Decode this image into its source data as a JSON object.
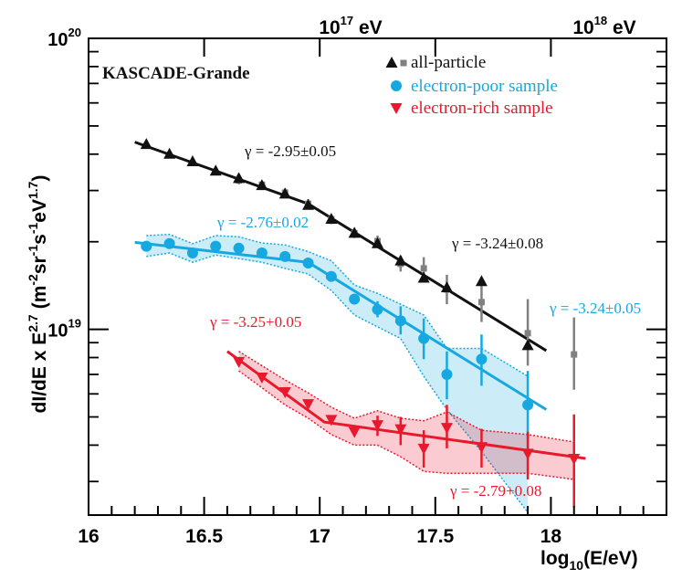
{
  "chart_data": {
    "type": "scatter",
    "title": "KASCADE-Grande",
    "xlabel": "log",
    "xlabel_sub": "10",
    "xlabel_tail": "(E/eV)",
    "ylabel": "dI/dE x  E",
    "ylabel_pow": "2.7",
    "ylabel_units": "(m",
    "ylabel_u1": "-2",
    "ylabel_u2": "sr",
    "ylabel_u3": "-1",
    "ylabel_u4": "s",
    "ylabel_u5": "-1",
    "ylabel_u6": "eV",
    "ylabel_u7": "1.7",
    "ylabel_close": ")",
    "xlim": [
      16.0,
      18.5
    ],
    "ylim": [
      2.3e+18,
      1e+20
    ],
    "y_scale": "log",
    "x_ticks": [
      "16",
      "16.5",
      "17",
      "17.5",
      "18"
    ],
    "y_ticks": [
      {
        "base": "10",
        "exp": "19"
      },
      {
        "base": "10",
        "exp": "20"
      }
    ],
    "top_axis": [
      {
        "base": "10",
        "exp": "17",
        "unit": " eV"
      },
      {
        "base": "10",
        "exp": "18",
        "unit": " eV"
      }
    ],
    "legend_position": "top-right",
    "legend": [
      {
        "label": "all-particle",
        "color": "#111111"
      },
      {
        "label": "electron-poor sample",
        "color": "#16a8e0"
      },
      {
        "label": "electron-rich sample",
        "color": "#e8192c"
      }
    ],
    "annotations": [
      {
        "text": "γ = -2.95±0.05",
        "color": "#111111"
      },
      {
        "text": "γ = -3.24±0.08",
        "color": "#111111"
      },
      {
        "text": "γ = -2.76±0.02",
        "color": "#16a8e0"
      },
      {
        "text": "γ = -3.24±0.05",
        "color": "#16a8e0"
      },
      {
        "text": "γ = -3.25+0.05",
        "color": "#e8192c"
      },
      {
        "text": "γ = -2.79+0.08",
        "color": "#e8192c"
      }
    ],
    "series": [
      {
        "name": "all-particle",
        "marker": "triangle-up",
        "color": "#111111",
        "x": [
          16.25,
          16.35,
          16.45,
          16.55,
          16.65,
          16.75,
          16.85,
          16.95,
          17.05,
          17.15,
          17.25,
          17.35,
          17.45,
          17.55,
          17.7,
          17.9
        ],
        "y": [
          4.32e+19,
          4e+19,
          3.77e+19,
          3.5e+19,
          3.3e+19,
          3.12e+19,
          2.92e+19,
          2.67e+19,
          2.39e+19,
          2.14e+19,
          1.97e+19,
          1.72e+19,
          1.5e+19,
          1.39e+19,
          1.46e+19,
          8.8e+18
        ]
      },
      {
        "name": "all-particle (grey)",
        "marker": "square",
        "color": "#808080",
        "x": [
          16.65,
          16.75,
          16.85,
          16.95,
          17.05,
          17.15,
          17.25,
          17.35,
          17.45,
          17.55,
          17.7,
          17.9,
          18.1
        ],
        "y": [
          3.25e+19,
          3.14e+19,
          2.95e+19,
          2.7e+19,
          2.39e+19,
          2.14e+19,
          2.01e+19,
          1.68e+19,
          1.62e+19,
          1.37e+19,
          1.24e+19,
          9.7e+18,
          8.2e+18
        ],
        "err_low": [
          3.15e+19,
          3.05e+19,
          2.86e+19,
          2.6e+19,
          2.3e+19,
          2.06e+19,
          1.92e+19,
          1.58e+19,
          1.48e+19,
          1.22e+19,
          1.06e+19,
          7.5e+18,
          6.2e+18
        ],
        "err_high": [
          3.36e+19,
          3.23e+19,
          3.05e+19,
          2.8e+19,
          2.48e+19,
          2.23e+19,
          2.1e+19,
          1.79e+19,
          1.77e+19,
          1.54e+19,
          1.45e+19,
          1.27e+19,
          1.1e+19
        ]
      },
      {
        "name": "electron-poor sample",
        "marker": "circle",
        "color": "#16a8e0",
        "x": [
          16.25,
          16.35,
          16.45,
          16.55,
          16.65,
          16.75,
          16.85,
          16.95,
          17.05,
          17.15,
          17.25,
          17.35,
          17.45,
          17.55,
          17.7,
          17.9
        ],
        "y": [
          1.93e+19,
          1.97e+19,
          1.83e+19,
          1.93e+19,
          1.9e+19,
          1.83e+19,
          1.78e+19,
          1.69e+19,
          1.52e+19,
          1.27e+19,
          1.17e+19,
          1.07e+19,
          9.3e+18,
          7e+18,
          7.9e+18,
          5.5e+18
        ],
        "err_low": [
          null,
          null,
          null,
          null,
          null,
          null,
          null,
          null,
          null,
          null,
          1.1e+19,
          9.6e+18,
          7.9e+18,
          5.75e+18,
          6.4e+18,
          4.2e+18
        ],
        "err_high": [
          null,
          null,
          null,
          null,
          null,
          null,
          null,
          null,
          null,
          null,
          1.25e+19,
          1.2e+19,
          1.09e+19,
          8.4e+18,
          9.6e+18,
          7.2e+18
        ]
      },
      {
        "name": "electron-rich sample",
        "marker": "triangle-down",
        "color": "#e8192c",
        "x": [
          16.65,
          16.75,
          16.85,
          16.95,
          17.05,
          17.15,
          17.25,
          17.35,
          17.45,
          17.55,
          17.7,
          17.9,
          18.1
        ],
        "y": [
          7.75e+18,
          6.85e+18,
          6.1e+18,
          5.55e+18,
          4.9e+18,
          4.45e+18,
          4.7e+18,
          4.55e+18,
          3.9e+18,
          4.6e+18,
          3.95e+18,
          3.75e+18,
          3.6e+18
        ],
        "err_low": [
          null,
          null,
          null,
          null,
          null,
          null,
          4.3e+18,
          4e+18,
          3.35e+18,
          3.9e+18,
          3.35e+18,
          3.05e+18,
          2.45e+18
        ],
        "err_high": [
          null,
          null,
          null,
          null,
          null,
          null,
          5.05e+18,
          5e+18,
          4.5e+18,
          5.5e+18,
          4.55e+18,
          4.45e+18,
          5.1e+18
        ]
      }
    ],
    "fits": [
      {
        "color": "#111111",
        "points": [
          [
            16.2,
            4.4e+19
          ],
          [
            16.95,
            2.7e+19
          ],
          [
            17.98,
            8.45e+18
          ]
        ]
      },
      {
        "color": "#16a8e0",
        "points": [
          [
            16.2,
            1.99e+19
          ],
          [
            16.95,
            1.7e+19
          ],
          [
            17.98,
            5.3e+18
          ]
        ]
      },
      {
        "color": "#e8192c",
        "points": [
          [
            16.6,
            8.4e+18
          ],
          [
            17.02,
            4.8e+18
          ],
          [
            18.15,
            3.6e+18
          ]
        ]
      }
    ],
    "bands": [
      {
        "color": "#16a8e0",
        "x": [
          16.25,
          16.35,
          16.45,
          16.55,
          16.65,
          16.75,
          16.85,
          16.95,
          17.05,
          17.15,
          17.25,
          17.35,
          17.45,
          17.55,
          17.7,
          17.9
        ],
        "low": [
          1.78e+19,
          1.83e+19,
          1.7e+19,
          1.8e+19,
          1.75e+19,
          1.7e+19,
          1.62e+19,
          1.55e+19,
          1.36e+19,
          1.12e+19,
          1.02e+19,
          9.3e+18,
          6.9e+18,
          5.3e+18,
          3.8e+18,
          2.35e+18
        ],
        "high": [
          2.1e+19,
          2.12e+19,
          1.97e+19,
          2.1e+19,
          2.08e+19,
          1.98e+19,
          1.95e+19,
          1.85e+19,
          1.72e+19,
          1.42e+19,
          1.33e+19,
          1.22e+19,
          1.12e+19,
          8.6e+18,
          8.6e+18,
          6.9e+18
        ]
      },
      {
        "color": "#e8192c",
        "x": [
          16.65,
          16.75,
          16.85,
          16.95,
          17.05,
          17.15,
          17.25,
          17.35,
          17.45,
          17.55,
          17.7,
          17.9,
          18.1
        ],
        "low": [
          7.2e+18,
          6.3e+18,
          5.5e+18,
          4.95e+18,
          4.35e+18,
          4e+18,
          4e+18,
          3.65e+18,
          3.25e+18,
          3.2e+18,
          3.2e+18,
          3.2e+18,
          3.05e+18
        ],
        "high": [
          8.4e+18,
          7.5e+18,
          6.7e+18,
          6.05e+18,
          5.4e+18,
          4.95e+18,
          5.25e+18,
          4.95e+18,
          4.85e+18,
          5.2e+18,
          4.5e+18,
          4.35e+18,
          4.1e+18
        ]
      }
    ]
  }
}
